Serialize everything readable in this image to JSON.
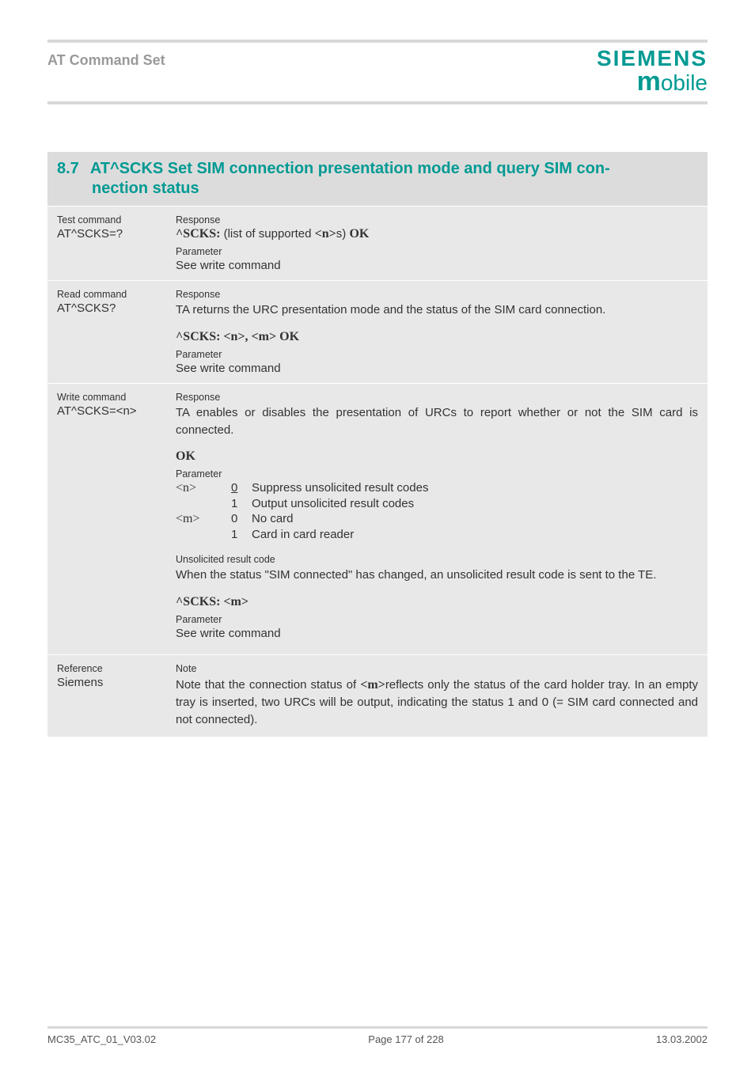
{
  "colors": {
    "accent": "#009a93",
    "grey_bar": "#d8d8d8",
    "panel_bg": "#e8e8e8",
    "title_bg": "#dcdcdc",
    "header_grey": "#9a9a9a",
    "text": "#333333"
  },
  "typography": {
    "body_fontsize_pt": 11,
    "title_fontsize_pt": 15,
    "small_label_fontsize_pt": 9.5,
    "font_family": "Arial"
  },
  "header": {
    "left": "AT Command Set",
    "logo_top": "SIEMENS",
    "logo_bottom_m": "m",
    "logo_bottom_rest": "obile"
  },
  "section": {
    "number": "8.7",
    "title_line1": "AT^SCKS  Set SIM connection presentation mode and query SIM con-",
    "title_line2": "nection status"
  },
  "rows": {
    "test": {
      "label": "Test command",
      "cmd": "AT^SCKS=?",
      "resp_label": "Response",
      "resp_line": "^SCKS: (list of supported <n>s) OK",
      "resp_prefix": "^SCKS:",
      "resp_mid": " (list of supported ",
      "resp_n": "<n>",
      "resp_tail": "s) ",
      "resp_ok": "OK",
      "param_label": "Parameter",
      "param_text": "See write command"
    },
    "read": {
      "label": "Read command",
      "cmd": "AT^SCKS?",
      "resp_label": "Response",
      "body": "TA returns the URC presentation mode and the status of the SIM card connection.",
      "resp_line": "^SCKS: <n>, <m> OK",
      "param_label": "Parameter",
      "param_text": "See write command"
    },
    "write": {
      "label": "Write command",
      "cmd": "AT^SCKS=<n>",
      "resp_label": "Response",
      "body": "TA enables or disables the presentation of URCs to report whether or not the SIM card is connected.",
      "ok": "OK",
      "param_label": "Parameter",
      "params": [
        {
          "key": "<n>",
          "items": [
            {
              "num": "0",
              "underline": true,
              "desc": "Suppress unsolicited result codes"
            },
            {
              "num": "1",
              "underline": false,
              "desc": "Output unsolicited result codes"
            }
          ]
        },
        {
          "key": "<m>",
          "items": [
            {
              "num": "0",
              "underline": false,
              "desc": "No card"
            },
            {
              "num": "1",
              "underline": false,
              "desc": "Card in card reader"
            }
          ]
        }
      ],
      "urc_label": "Unsolicited result code",
      "urc_body": "When the status \"SIM connected\" has changed, an unsolicited result code is sent to the TE.",
      "urc_line": "^SCKS: <m>",
      "param_label2": "Parameter",
      "param_text2": "See write command"
    },
    "ref": {
      "label": "Reference",
      "who": "Siemens",
      "note_label": "Note",
      "note_pre": "Note that the connection status of ",
      "note_m": "<m>",
      "note_post": "reflects only the status of the card holder tray. In an empty tray is inserted, two URCs will be output, indicating the status 1 and 0 (= SIM card connected and not connected)."
    }
  },
  "footer": {
    "left": "MC35_ATC_01_V03.02",
    "center": "Page 177 of 228",
    "right": "13.03.2002"
  }
}
